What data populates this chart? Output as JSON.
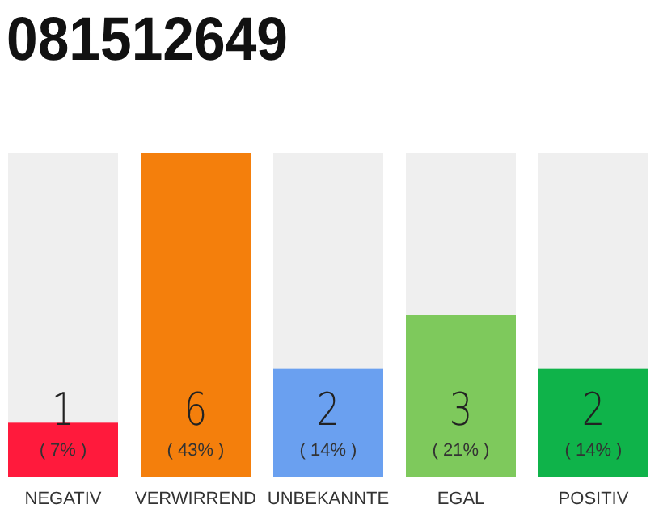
{
  "chart_data": {
    "type": "bar",
    "title": "081512649",
    "categories": [
      "NEGATIV",
      "VERWIRREND",
      "UNBEKANNTE",
      "EGAL",
      "POSITIV"
    ],
    "values": [
      1,
      6,
      2,
      3,
      2
    ],
    "colors": [
      "#ff1a3c",
      "#f47f0c",
      "#6aa0f0",
      "#7ec95c",
      "#0fb34a"
    ],
    "value_labels": [
      "1\n( 7% )",
      "6\n( 43% )",
      "2\n( 14% )",
      "3\n( 21% )",
      "2\n( 14% )"
    ],
    "ylim": [
      0,
      6
    ],
    "tick_labels": "x"
  }
}
